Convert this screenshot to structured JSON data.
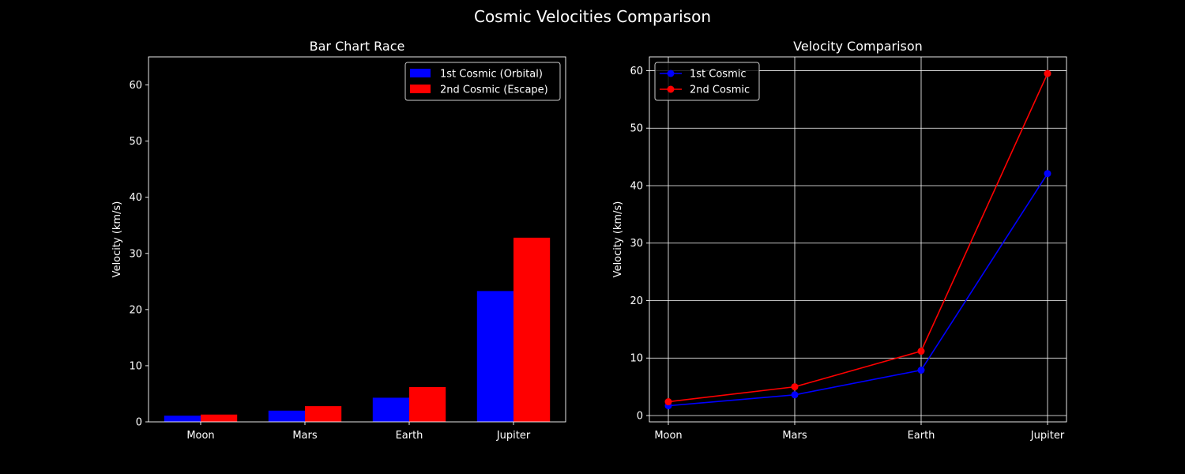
{
  "figure": {
    "title": "Cosmic Velocities Comparison",
    "background": "#000000",
    "foreground": "#ffffff"
  },
  "chart_data": [
    {
      "type": "bar",
      "title": "Bar Chart Race",
      "xlabel": "",
      "ylabel": "Velocity (km/s)",
      "categories": [
        "Moon",
        "Mars",
        "Earth",
        "Jupiter"
      ],
      "ylim": [
        0,
        65
      ],
      "yticks": [
        0,
        10,
        20,
        30,
        40,
        50,
        60
      ],
      "grid": false,
      "legend": "top-right",
      "series": [
        {
          "name": "1st Cosmic (Orbital)",
          "color": "#0000ff",
          "values": [
            1.1,
            2.0,
            4.3,
            23.3
          ]
        },
        {
          "name": "2nd Cosmic (Escape)",
          "color": "#ff0000",
          "values": [
            1.3,
            2.8,
            6.2,
            32.8
          ]
        }
      ]
    },
    {
      "type": "line",
      "title": "Velocity Comparison",
      "xlabel": "",
      "ylabel": "Velocity (km/s)",
      "categories": [
        "Moon",
        "Mars",
        "Earth",
        "Jupiter"
      ],
      "ylim": [
        -1.1,
        62.4
      ],
      "yticks": [
        0,
        10,
        20,
        30,
        40,
        50,
        60
      ],
      "grid": true,
      "legend": "top-left",
      "series": [
        {
          "name": "1st Cosmic",
          "color": "#0000ff",
          "values": [
            1.7,
            3.6,
            7.9,
            42.1
          ]
        },
        {
          "name": "2nd Cosmic",
          "color": "#ff0000",
          "values": [
            2.4,
            5.0,
            11.2,
            59.5
          ]
        }
      ]
    }
  ]
}
